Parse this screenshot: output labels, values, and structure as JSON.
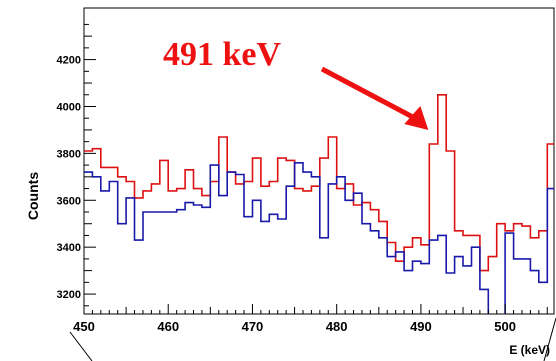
{
  "chart_data": {
    "type": "line",
    "style": "step",
    "xlabel": "E (keV)",
    "ylabel": "Counts",
    "xlim": [
      450,
      505.8
    ],
    "ylim": [
      3115,
      4420
    ],
    "x_ticks": [
      450,
      460,
      470,
      480,
      490,
      500
    ],
    "y_ticks": [
      3200,
      3400,
      3600,
      3800,
      4000,
      4200
    ],
    "annotation": {
      "text": "491 keV",
      "color": "#ee1111",
      "points_to_x": 491
    },
    "series": [
      {
        "color": "#dd1111",
        "x_edges": [
          450,
          451,
          452,
          453,
          454,
          455,
          456,
          457,
          458,
          459,
          460,
          461,
          462,
          463,
          464,
          465,
          466,
          467,
          468,
          469,
          470,
          471,
          472,
          473,
          474,
          475,
          476,
          477,
          478,
          479,
          480,
          481,
          482,
          483,
          484,
          485,
          486,
          487,
          488,
          489,
          490,
          491,
          492,
          493,
          494,
          495,
          496,
          497,
          498,
          499,
          500,
          501,
          502,
          503,
          504,
          505
        ],
        "values": [
          3810,
          3820,
          3740,
          3740,
          3700,
          3680,
          3610,
          3640,
          3670,
          3770,
          3640,
          3650,
          3730,
          3650,
          3620,
          3680,
          3870,
          3720,
          3670,
          3680,
          3780,
          3660,
          3680,
          3780,
          3770,
          3650,
          3640,
          3660,
          3780,
          3870,
          3650,
          3670,
          3580,
          3590,
          3560,
          3510,
          3420,
          3340,
          3400,
          3440,
          3410,
          3840,
          4050,
          3810,
          3470,
          3450,
          3450,
          3300,
          3360,
          3500,
          3470,
          3500,
          3490,
          3440,
          3470,
          3840
        ]
      },
      {
        "color": "#1a1aaa",
        "x_edges": [
          450,
          451,
          452,
          453,
          454,
          455,
          456,
          457,
          458,
          459,
          460,
          461,
          462,
          463,
          464,
          465,
          466,
          467,
          468,
          469,
          470,
          471,
          472,
          473,
          474,
          475,
          476,
          477,
          478,
          479,
          480,
          481,
          482,
          483,
          484,
          485,
          486,
          487,
          488,
          489,
          490,
          491,
          492,
          493,
          494,
          495,
          496,
          497,
          498,
          499,
          500,
          501,
          502,
          503,
          504,
          505
        ],
        "values": [
          3720,
          3700,
          3640,
          3680,
          3500,
          3610,
          3430,
          3550,
          3550,
          3550,
          3550,
          3560,
          3590,
          3580,
          3570,
          3750,
          3620,
          3720,
          3710,
          3530,
          3600,
          3510,
          3540,
          3520,
          3660,
          3760,
          3720,
          3700,
          3440,
          3670,
          3700,
          3600,
          3630,
          3500,
          3470,
          3440,
          3360,
          3380,
          3300,
          3340,
          3330,
          3430,
          3450,
          3290,
          3360,
          3320,
          3400,
          3220,
          3110,
          3110,
          3460,
          3350,
          3350,
          3300,
          3250,
          3650
        ]
      }
    ]
  }
}
